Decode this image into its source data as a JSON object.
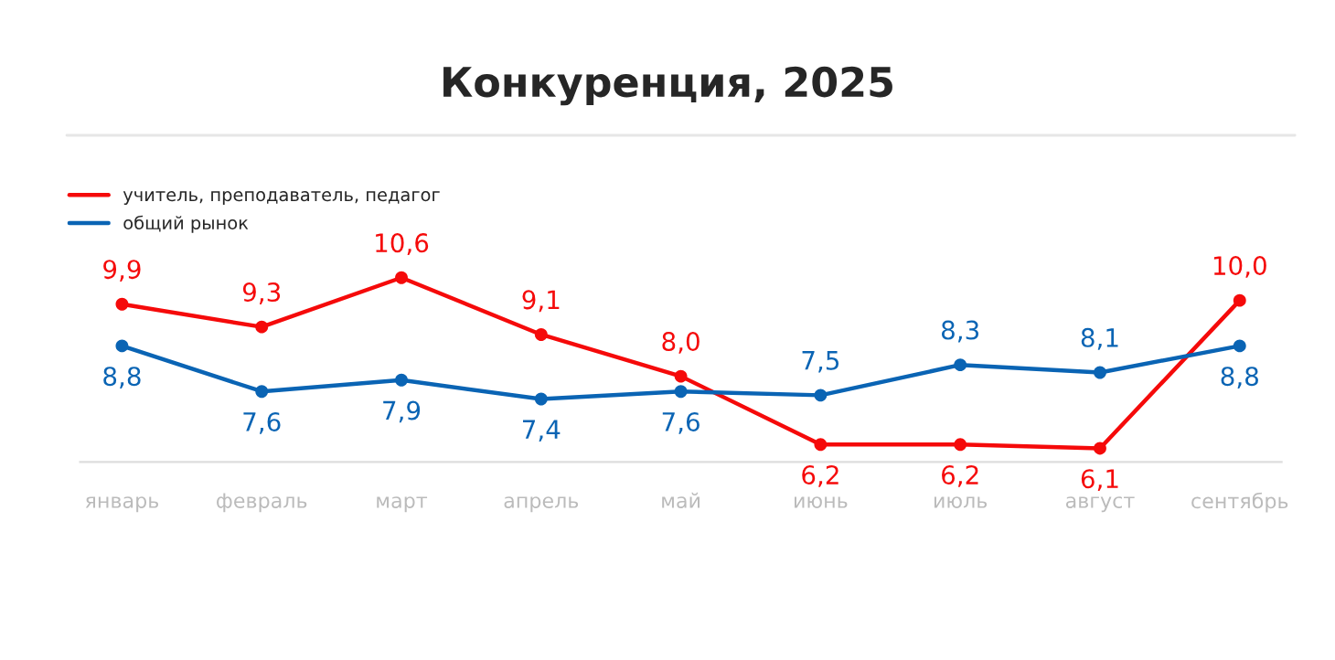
{
  "chart_data": {
    "type": "line",
    "title": "Конкуренция, 2025",
    "categories": [
      "январь",
      "февраль",
      "март",
      "апрель",
      "май",
      "июнь",
      "июль",
      "август",
      "сентябрь"
    ],
    "series": [
      {
        "name": "учитель, преподаватель, педагог",
        "color": "#f50a0a",
        "values": [
          9.9,
          9.3,
          10.6,
          9.1,
          8.0,
          6.2,
          6.2,
          6.1,
          10.0
        ],
        "value_labels": [
          "9,9",
          "9,3",
          "10,6",
          "9,1",
          "8,0",
          "6,2",
          "6,2",
          "6,1",
          "10,0"
        ]
      },
      {
        "name": "общий рынок",
        "color": "#0a64b4",
        "values": [
          8.8,
          7.6,
          7.9,
          7.4,
          7.6,
          7.5,
          8.3,
          8.1,
          8.8
        ],
        "value_labels": [
          "8,8",
          "7,6",
          "7,9",
          "7,4",
          "7,6",
          "7,5",
          "8,3",
          "8,1",
          "8,8"
        ]
      }
    ],
    "marker": "circle",
    "line_style": "solid",
    "legend": "top left",
    "grid": false
  }
}
